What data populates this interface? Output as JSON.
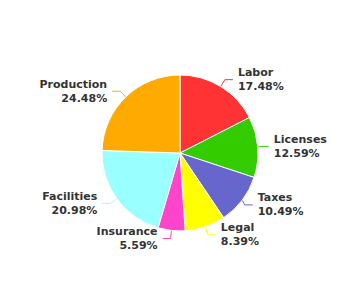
{
  "chart_data": {
    "type": "pie",
    "categories": [
      "Labor",
      "Licenses",
      "Taxes",
      "Legal",
      "Insurance",
      "Facilities",
      "Production"
    ],
    "values": [
      17.48,
      12.59,
      10.49,
      8.39,
      5.59,
      20.98,
      24.48
    ],
    "value_labels": [
      "17.48%",
      "12.59%",
      "10.49%",
      "8.39%",
      "5.59%",
      "20.98%",
      "24.48%"
    ],
    "colors": [
      "#ff3333",
      "#33cc00",
      "#6666cc",
      "#ffff00",
      "#ff44cc",
      "#99ffff",
      "#ffaa00"
    ],
    "data_labels": true
  }
}
